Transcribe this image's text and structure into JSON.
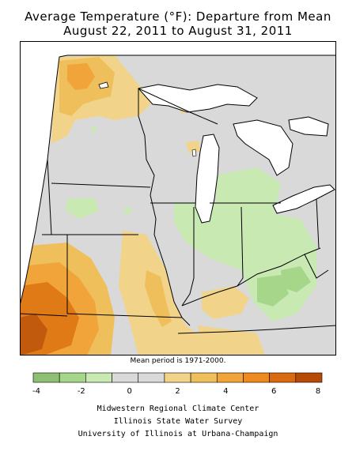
{
  "title_line1": "Average Temperature (°F): Departure from Mean",
  "title_line2": "August 22, 2011 to August 31, 2011",
  "mean_period": "Mean period is 1971-2000.",
  "legend": {
    "colors": [
      "#8fbf72",
      "#a6d68a",
      "#c9e9b3",
      "#d9d9d9",
      "#d9d9d9",
      "#f2d38a",
      "#efbf5c",
      "#f0a43a",
      "#ee8a1f",
      "#d96a10",
      "#b84a08"
    ],
    "tick_labels": [
      "-4",
      "-2",
      "0",
      "2",
      "4",
      "6",
      "8"
    ]
  },
  "credits": [
    "Midwestern Regional Climate Center",
    "Illinois State Water Survey",
    "University of Illinois at Urbana-Champaign"
  ],
  "colors": {
    "background_land": "#d9d9d9",
    "water": "#ffffff",
    "cool_light": "#c9e9b3",
    "cool_mid": "#a6d68a",
    "warm_light": "#f2d38a",
    "warm_mid": "#efbf5c",
    "warm_strong": "#f0a43a",
    "hot": "#e07a16",
    "hottest": "#c15a0c"
  }
}
